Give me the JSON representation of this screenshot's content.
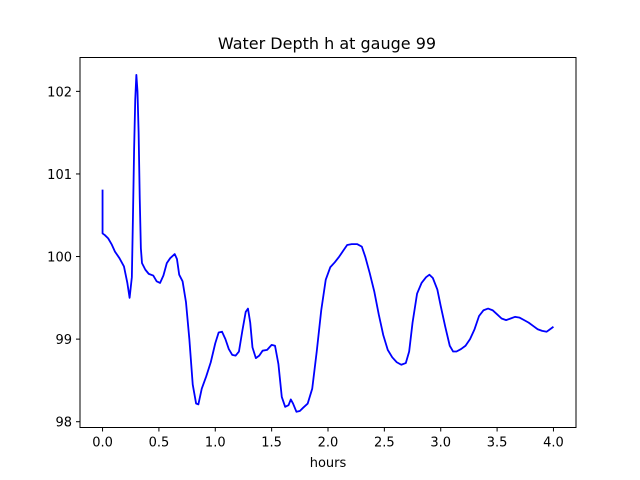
{
  "chart_data": {
    "type": "line",
    "title": "Water Depth h at gauge 99",
    "xlabel": "hours",
    "ylabel": "",
    "xlim": [
      -0.2,
      4.2
    ],
    "ylim": [
      97.93,
      102.41
    ],
    "xticks": [
      0.0,
      0.5,
      1.0,
      1.5,
      2.0,
      2.5,
      3.0,
      3.5,
      4.0
    ],
    "xtick_labels": [
      "0.0",
      "0.5",
      "1.0",
      "1.5",
      "2.0",
      "2.5",
      "3.0",
      "3.5",
      "4.0"
    ],
    "yticks": [
      98,
      99,
      100,
      101,
      102
    ],
    "ytick_labels": [
      "98",
      "99",
      "100",
      "101",
      "102"
    ],
    "grid": false,
    "series": [
      {
        "color": "#0000ff",
        "points": [
          [
            0.0,
            100.81
          ],
          [
            0.0,
            100.28
          ],
          [
            0.02,
            100.26
          ],
          [
            0.05,
            100.22
          ],
          [
            0.08,
            100.15
          ],
          [
            0.11,
            100.06
          ],
          [
            0.15,
            99.98
          ],
          [
            0.19,
            99.88
          ],
          [
            0.22,
            99.68
          ],
          [
            0.24,
            99.5
          ],
          [
            0.26,
            99.75
          ],
          [
            0.27,
            100.5
          ],
          [
            0.28,
            101.3
          ],
          [
            0.29,
            101.9
          ],
          [
            0.3,
            102.2
          ],
          [
            0.31,
            102.0
          ],
          [
            0.32,
            101.5
          ],
          [
            0.33,
            100.7
          ],
          [
            0.34,
            100.1
          ],
          [
            0.35,
            99.92
          ],
          [
            0.38,
            99.84
          ],
          [
            0.41,
            99.79
          ],
          [
            0.45,
            99.77
          ],
          [
            0.48,
            99.7
          ],
          [
            0.51,
            99.68
          ],
          [
            0.54,
            99.77
          ],
          [
            0.57,
            99.92
          ],
          [
            0.6,
            99.98
          ],
          [
            0.64,
            100.03
          ],
          [
            0.66,
            99.97
          ],
          [
            0.68,
            99.78
          ],
          [
            0.71,
            99.7
          ],
          [
            0.74,
            99.45
          ],
          [
            0.77,
            99.0
          ],
          [
            0.8,
            98.45
          ],
          [
            0.83,
            98.22
          ],
          [
            0.85,
            98.21
          ],
          [
            0.88,
            98.4
          ],
          [
            0.92,
            98.55
          ],
          [
            0.96,
            98.72
          ],
          [
            1.0,
            98.95
          ],
          [
            1.03,
            99.08
          ],
          [
            1.06,
            99.09
          ],
          [
            1.09,
            99.0
          ],
          [
            1.12,
            98.88
          ],
          [
            1.15,
            98.81
          ],
          [
            1.18,
            98.8
          ],
          [
            1.21,
            98.85
          ],
          [
            1.24,
            99.1
          ],
          [
            1.27,
            99.33
          ],
          [
            1.29,
            99.37
          ],
          [
            1.31,
            99.2
          ],
          [
            1.33,
            98.9
          ],
          [
            1.36,
            98.77
          ],
          [
            1.39,
            98.8
          ],
          [
            1.42,
            98.86
          ],
          [
            1.46,
            98.87
          ],
          [
            1.5,
            98.93
          ],
          [
            1.53,
            98.92
          ],
          [
            1.56,
            98.7
          ],
          [
            1.59,
            98.3
          ],
          [
            1.62,
            98.18
          ],
          [
            1.65,
            98.2
          ],
          [
            1.67,
            98.27
          ],
          [
            1.69,
            98.22
          ],
          [
            1.72,
            98.12
          ],
          [
            1.75,
            98.13
          ],
          [
            1.78,
            98.17
          ],
          [
            1.82,
            98.22
          ],
          [
            1.86,
            98.4
          ],
          [
            1.9,
            98.85
          ],
          [
            1.94,
            99.35
          ],
          [
            1.98,
            99.72
          ],
          [
            2.02,
            99.87
          ],
          [
            2.06,
            99.93
          ],
          [
            2.1,
            100.0
          ],
          [
            2.14,
            100.08
          ],
          [
            2.17,
            100.14
          ],
          [
            2.21,
            100.15
          ],
          [
            2.26,
            100.15
          ],
          [
            2.3,
            100.12
          ],
          [
            2.33,
            100.0
          ],
          [
            2.37,
            99.8
          ],
          [
            2.41,
            99.58
          ],
          [
            2.45,
            99.3
          ],
          [
            2.49,
            99.05
          ],
          [
            2.53,
            98.87
          ],
          [
            2.57,
            98.78
          ],
          [
            2.61,
            98.72
          ],
          [
            2.65,
            98.69
          ],
          [
            2.69,
            98.71
          ],
          [
            2.72,
            98.85
          ],
          [
            2.75,
            99.2
          ],
          [
            2.79,
            99.55
          ],
          [
            2.83,
            99.68
          ],
          [
            2.87,
            99.75
          ],
          [
            2.9,
            99.78
          ],
          [
            2.93,
            99.74
          ],
          [
            2.97,
            99.6
          ],
          [
            3.0,
            99.4
          ],
          [
            3.04,
            99.15
          ],
          [
            3.08,
            98.92
          ],
          [
            3.11,
            98.85
          ],
          [
            3.14,
            98.85
          ],
          [
            3.18,
            98.88
          ],
          [
            3.22,
            98.92
          ],
          [
            3.26,
            99.0
          ],
          [
            3.3,
            99.12
          ],
          [
            3.34,
            99.28
          ],
          [
            3.38,
            99.35
          ],
          [
            3.42,
            99.37
          ],
          [
            3.46,
            99.35
          ],
          [
            3.5,
            99.3
          ],
          [
            3.54,
            99.25
          ],
          [
            3.58,
            99.23
          ],
          [
            3.62,
            99.25
          ],
          [
            3.66,
            99.27
          ],
          [
            3.7,
            99.26
          ],
          [
            3.74,
            99.23
          ],
          [
            3.78,
            99.2
          ],
          [
            3.82,
            99.16
          ],
          [
            3.86,
            99.12
          ],
          [
            3.9,
            99.1
          ],
          [
            3.94,
            99.09
          ],
          [
            3.97,
            99.12
          ],
          [
            4.0,
            99.15
          ]
        ]
      }
    ]
  }
}
